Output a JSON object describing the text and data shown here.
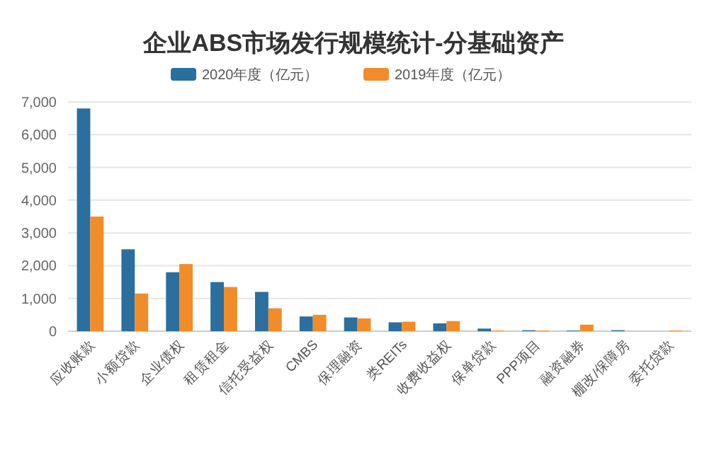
{
  "chart_data": {
    "type": "bar",
    "title": "企业ABS市场发行规模统计-分基础资产",
    "categories": [
      "应收账款",
      "小额贷款",
      "企业债权",
      "租赁租金",
      "信托受益权",
      "CMBS",
      "保理融资",
      "类REITs",
      "收费收益权",
      "保单贷款",
      "PPP项目",
      "融资融券",
      "棚改/保障房",
      "委托贷款"
    ],
    "series": [
      {
        "name": "2020年度（亿元）",
        "color": "#2a6f9e",
        "values": [
          6800,
          2500,
          1800,
          1500,
          1200,
          450,
          420,
          270,
          240,
          80,
          30,
          20,
          30,
          0
        ]
      },
      {
        "name": "2019年度（亿元）",
        "color": "#f28c28",
        "values": [
          3500,
          1150,
          2050,
          1350,
          700,
          500,
          390,
          290,
          310,
          20,
          20,
          200,
          0,
          20
        ]
      }
    ],
    "ylim": [
      0,
      7000
    ],
    "yticks": [
      {
        "value": 0,
        "label": "0"
      },
      {
        "value": 1000,
        "label": "1,000"
      },
      {
        "value": 2000,
        "label": "2,000"
      },
      {
        "value": 3000,
        "label": "3,000"
      },
      {
        "value": 4000,
        "label": "4,000"
      },
      {
        "value": 5000,
        "label": "5,000"
      },
      {
        "value": 6000,
        "label": "6,000"
      },
      {
        "value": 7000,
        "label": "7,000"
      }
    ],
    "grid": "y",
    "legend": "top"
  }
}
